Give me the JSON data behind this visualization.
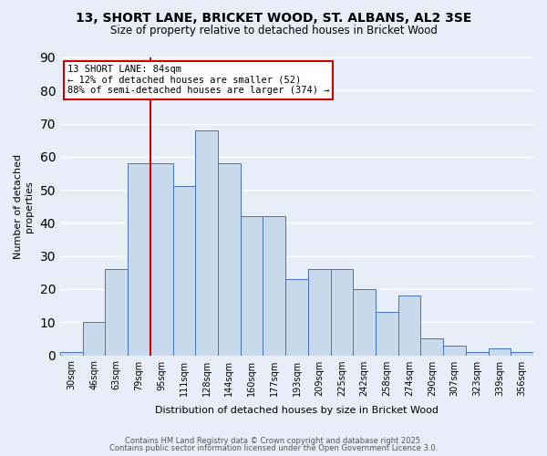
{
  "title": "13, SHORT LANE, BRICKET WOOD, ST. ALBANS, AL2 3SE",
  "subtitle": "Size of property relative to detached houses in Bricket Wood",
  "xlabel": "Distribution of detached houses by size in Bricket Wood",
  "ylabel": "Number of detached\nproperties",
  "bin_labels": [
    "30sqm",
    "46sqm",
    "63sqm",
    "79sqm",
    "95sqm",
    "111sqm",
    "128sqm",
    "144sqm",
    "160sqm",
    "177sqm",
    "193sqm",
    "209sqm",
    "225sqm",
    "242sqm",
    "258sqm",
    "274sqm",
    "290sqm",
    "307sqm",
    "323sqm",
    "339sqm",
    "356sqm"
  ],
  "bar_heights": [
    1,
    10,
    26,
    58,
    58,
    51,
    68,
    58,
    42,
    42,
    23,
    26,
    26,
    20,
    13,
    18,
    5,
    3,
    1,
    2,
    1
  ],
  "bar_color": "#c9d9ec",
  "bar_edge_color": "#4472c4",
  "bg_color": "#e8eef7",
  "grid_color": "#ffffff",
  "annotation_line1": "13 SHORT LANE: 84sqm",
  "annotation_line2": "← 12% of detached houses are smaller (52)",
  "annotation_line3": "88% of semi-detached houses are larger (374) →",
  "annotation_box_color": "#ffffff",
  "annotation_box_edge": "#cc0000",
  "redline_color": "#cc0000",
  "red_line_x": 3.5,
  "ylim": [
    0,
    90
  ],
  "yticks": [
    0,
    10,
    20,
    30,
    40,
    50,
    60,
    70,
    80,
    90
  ],
  "footer1": "Contains HM Land Registry data © Crown copyright and database right 2025.",
  "footer2": "Contains public sector information licensed under the Open Government Licence 3.0."
}
